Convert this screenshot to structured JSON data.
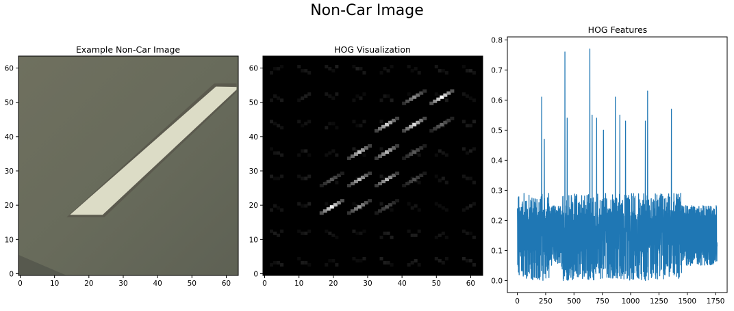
{
  "figure": {
    "suptitle": "Non-Car Image"
  },
  "colors": {
    "line": "#1f77b4",
    "axes": "#000000",
    "stripe": "#dcdcc6",
    "terrain": "#6b6e5e"
  },
  "chart_data": [
    {
      "type": "image",
      "title": "Example Non-Car Image",
      "xticks": [
        0,
        10,
        20,
        30,
        40,
        50,
        60
      ],
      "yticks": [
        0,
        10,
        20,
        30,
        40,
        50,
        60
      ],
      "xlim": [
        -0.5,
        63.5
      ],
      "ylim": [
        63.5,
        -0.5
      ],
      "content": "aerial road surface with a light diagonal lane-marking stripe"
    },
    {
      "type": "heatmap",
      "title": "HOG Visualization",
      "xticks": [
        0,
        10,
        20,
        30,
        40,
        50,
        60
      ],
      "yticks": [
        0,
        10,
        20,
        30,
        40,
        50,
        60
      ],
      "xlim": [
        -0.5,
        63.5
      ],
      "ylim": [
        63.5,
        -0.5
      ],
      "colormap": "gray",
      "cell_size": 8,
      "strong_cells": [
        {
          "row": 1,
          "col": 6,
          "value": 1.0
        },
        {
          "row": 1,
          "col": 5,
          "value": 0.55
        },
        {
          "row": 2,
          "col": 4,
          "value": 0.8
        },
        {
          "row": 2,
          "col": 5,
          "value": 0.85
        },
        {
          "row": 2,
          "col": 6,
          "value": 0.4
        },
        {
          "row": 3,
          "col": 3,
          "value": 0.75
        },
        {
          "row": 3,
          "col": 4,
          "value": 0.7
        },
        {
          "row": 3,
          "col": 5,
          "value": 0.35
        },
        {
          "row": 4,
          "col": 2,
          "value": 0.35
        },
        {
          "row": 4,
          "col": 3,
          "value": 0.7
        },
        {
          "row": 4,
          "col": 4,
          "value": 0.7
        },
        {
          "row": 4,
          "col": 5,
          "value": 0.3
        },
        {
          "row": 5,
          "col": 2,
          "value": 0.95
        },
        {
          "row": 5,
          "col": 3,
          "value": 0.6
        },
        {
          "row": 5,
          "col": 4,
          "value": 0.3
        }
      ]
    },
    {
      "type": "line",
      "title": "HOG Features",
      "xticks": [
        0,
        250,
        500,
        750,
        1000,
        1250,
        1500,
        1750
      ],
      "yticks": [
        0.0,
        0.1,
        0.2,
        0.3,
        0.4,
        0.5,
        0.6,
        0.7,
        0.8
      ],
      "ytick_labels": [
        "0.0",
        "0.1",
        "0.2",
        "0.3",
        "0.4",
        "0.5",
        "0.6",
        "0.7",
        "0.8"
      ],
      "xlim": [
        -88,
        1852
      ],
      "ylim": [
        -0.04,
        0.81
      ],
      "n_points": 1764,
      "peaks": [
        {
          "x": 215,
          "y": 0.61
        },
        {
          "x": 238,
          "y": 0.47
        },
        {
          "x": 420,
          "y": 0.76
        },
        {
          "x": 440,
          "y": 0.54
        },
        {
          "x": 640,
          "y": 0.77
        },
        {
          "x": 660,
          "y": 0.55
        },
        {
          "x": 700,
          "y": 0.54
        },
        {
          "x": 760,
          "y": 0.5
        },
        {
          "x": 865,
          "y": 0.61
        },
        {
          "x": 905,
          "y": 0.55
        },
        {
          "x": 955,
          "y": 0.53
        },
        {
          "x": 1130,
          "y": 0.53
        },
        {
          "x": 1150,
          "y": 0.63
        },
        {
          "x": 1360,
          "y": 0.57
        }
      ],
      "quiet_ranges": [
        [
          280,
          390
        ],
        [
          1450,
          1764
        ]
      ]
    }
  ]
}
